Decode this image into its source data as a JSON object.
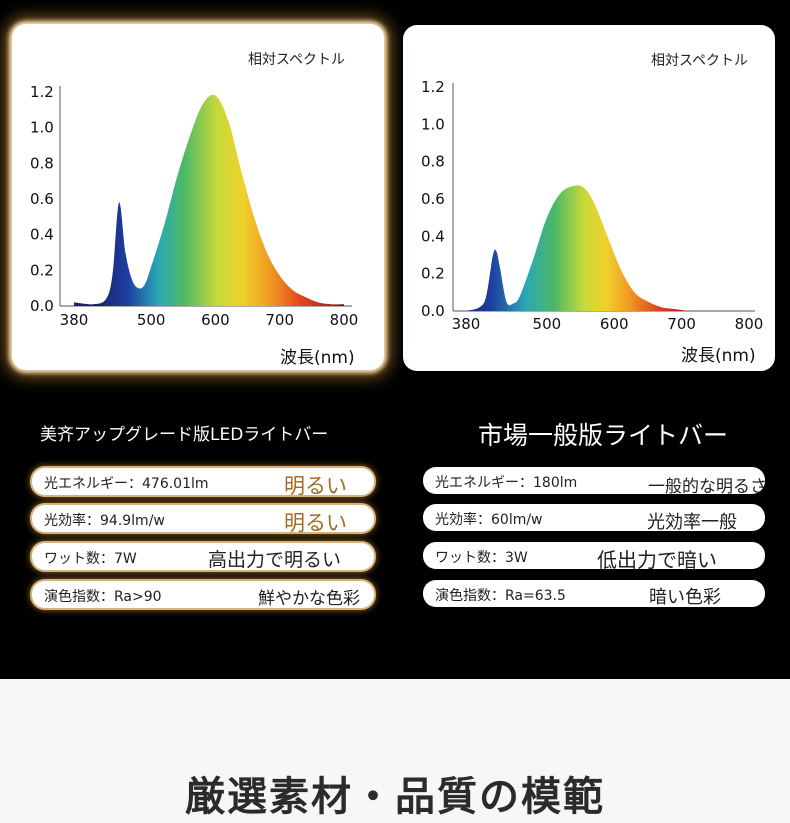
{
  "left_chart": {
    "title": "相対スペクトル",
    "xlabel": "波長(nm)",
    "yticks": [
      "1.2",
      "1.0",
      "0.8",
      "0.6",
      "0.4",
      "0.2",
      "0.0"
    ],
    "xticks": [
      "380",
      "500",
      "600",
      "700",
      "800"
    ]
  },
  "right_chart": {
    "title": "相対スペクトル",
    "xlabel": "波長(nm)",
    "yticks": [
      "1.2",
      "1.0",
      "0.8",
      "0.6",
      "0.4",
      "0.2",
      "0.0"
    ],
    "xticks": [
      "380",
      "500",
      "600",
      "700",
      "800"
    ]
  },
  "chart_data": [
    {
      "type": "area",
      "title": "相対スペクトル",
      "xlabel": "波長(nm)",
      "ylabel": "",
      "xlim": [
        380,
        800
      ],
      "ylim": [
        0,
        1.2
      ],
      "x_ticks": [
        380,
        500,
        600,
        700,
        800
      ],
      "y_ticks": [
        0.0,
        0.2,
        0.4,
        0.6,
        0.8,
        1.0,
        1.2
      ],
      "grid": false,
      "series": [
        {
          "x": [
            380,
            410,
            430,
            440,
            450,
            460,
            470,
            480,
            490,
            500,
            520,
            540,
            560,
            580,
            600,
            620,
            640,
            660,
            680,
            700,
            720,
            740,
            760,
            780,
            800
          ],
          "y": [
            0.02,
            0.01,
            0.04,
            0.18,
            0.58,
            0.3,
            0.15,
            0.1,
            0.12,
            0.22,
            0.45,
            0.72,
            0.95,
            1.13,
            1.18,
            1.04,
            0.76,
            0.5,
            0.3,
            0.17,
            0.09,
            0.05,
            0.02,
            0.01,
            0.01
          ]
        }
      ]
    },
    {
      "type": "area",
      "title": "相対スペクトル",
      "xlabel": "波長(nm)",
      "ylabel": "",
      "xlim": [
        380,
        800
      ],
      "ylim": [
        0,
        1.2
      ],
      "x_ticks": [
        380,
        500,
        600,
        700,
        800
      ],
      "y_ticks": [
        0.0,
        0.2,
        0.4,
        0.6,
        0.8,
        1.0,
        1.2
      ],
      "grid": false,
      "series": [
        {
          "x": [
            380,
            400,
            410,
            420,
            425,
            430,
            440,
            450,
            460,
            480,
            500,
            520,
            540,
            555,
            570,
            590,
            610,
            630,
            650,
            670,
            690,
            710,
            720
          ],
          "y": [
            0.0,
            0.02,
            0.08,
            0.3,
            0.32,
            0.24,
            0.05,
            0.04,
            0.08,
            0.28,
            0.5,
            0.63,
            0.67,
            0.66,
            0.58,
            0.4,
            0.22,
            0.1,
            0.05,
            0.02,
            0.01,
            0.0,
            0.0
          ]
        }
      ]
    }
  ],
  "left_section": {
    "heading": "美齐アップグレード版LEDライトバー",
    "specs": [
      {
        "label": "光エネルギー：476.01lm",
        "value": "明るい"
      },
      {
        "label": "光効率：94.9lm/w",
        "value": "明るい"
      },
      {
        "label": "ワット数：7W",
        "value": "高出力で明るい"
      },
      {
        "label": "演色指数：Ra>90",
        "value": "鮮やかな色彩"
      }
    ]
  },
  "right_section": {
    "heading": "市場一般版ライトバー",
    "specs": [
      {
        "label": "光エネルギー：180lm",
        "value": "一般的な明るさ"
      },
      {
        "label": "光効率：60lm/w",
        "value": "光効率一般"
      },
      {
        "label": "ワット数：3W",
        "value": "低出力で暗い"
      },
      {
        "label": "演色指数：Ra=63.5",
        "value": "暗い色彩"
      }
    ]
  },
  "bottom": {
    "title": "厳選素材・品質の模範"
  }
}
